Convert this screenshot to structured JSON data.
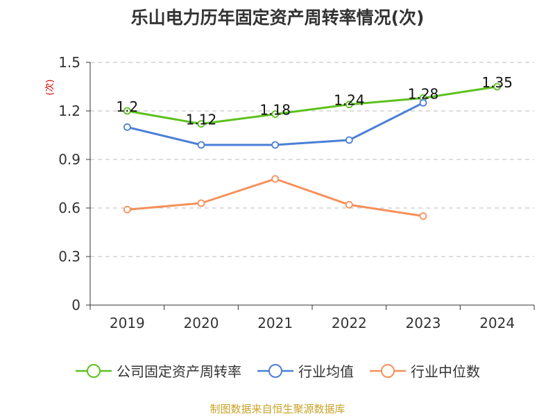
{
  "chart_data": {
    "type": "line",
    "title": "乐山电力历年固定资产周转率情况(次)",
    "ylabel": "(次)",
    "xlabel": "",
    "categories": [
      "2019",
      "2020",
      "2021",
      "2022",
      "2023",
      "2024"
    ],
    "ylim": [
      0,
      1.5
    ],
    "yticks": [
      "0",
      "0.3",
      "0.6",
      "0.9",
      "1.2",
      "1.5"
    ],
    "grid": true,
    "legend_position": "bottom",
    "series": [
      {
        "name": "公司固定资产周转率",
        "color": "#5cc11c",
        "values": [
          1.2,
          1.12,
          1.18,
          1.24,
          1.28,
          1.35
        ],
        "labels": [
          "1.2",
          "1.12",
          "1.18",
          "1.24",
          "1.28",
          "1.35"
        ]
      },
      {
        "name": "行业均值",
        "color": "#4a7fd6",
        "values": [
          1.1,
          0.99,
          0.99,
          1.02,
          1.25,
          null
        ]
      },
      {
        "name": "行业中位数",
        "color": "#f6905a",
        "values": [
          0.59,
          0.63,
          0.78,
          0.62,
          0.55,
          null
        ]
      }
    ]
  },
  "footer": "制图数据来自恒生聚源数据库"
}
